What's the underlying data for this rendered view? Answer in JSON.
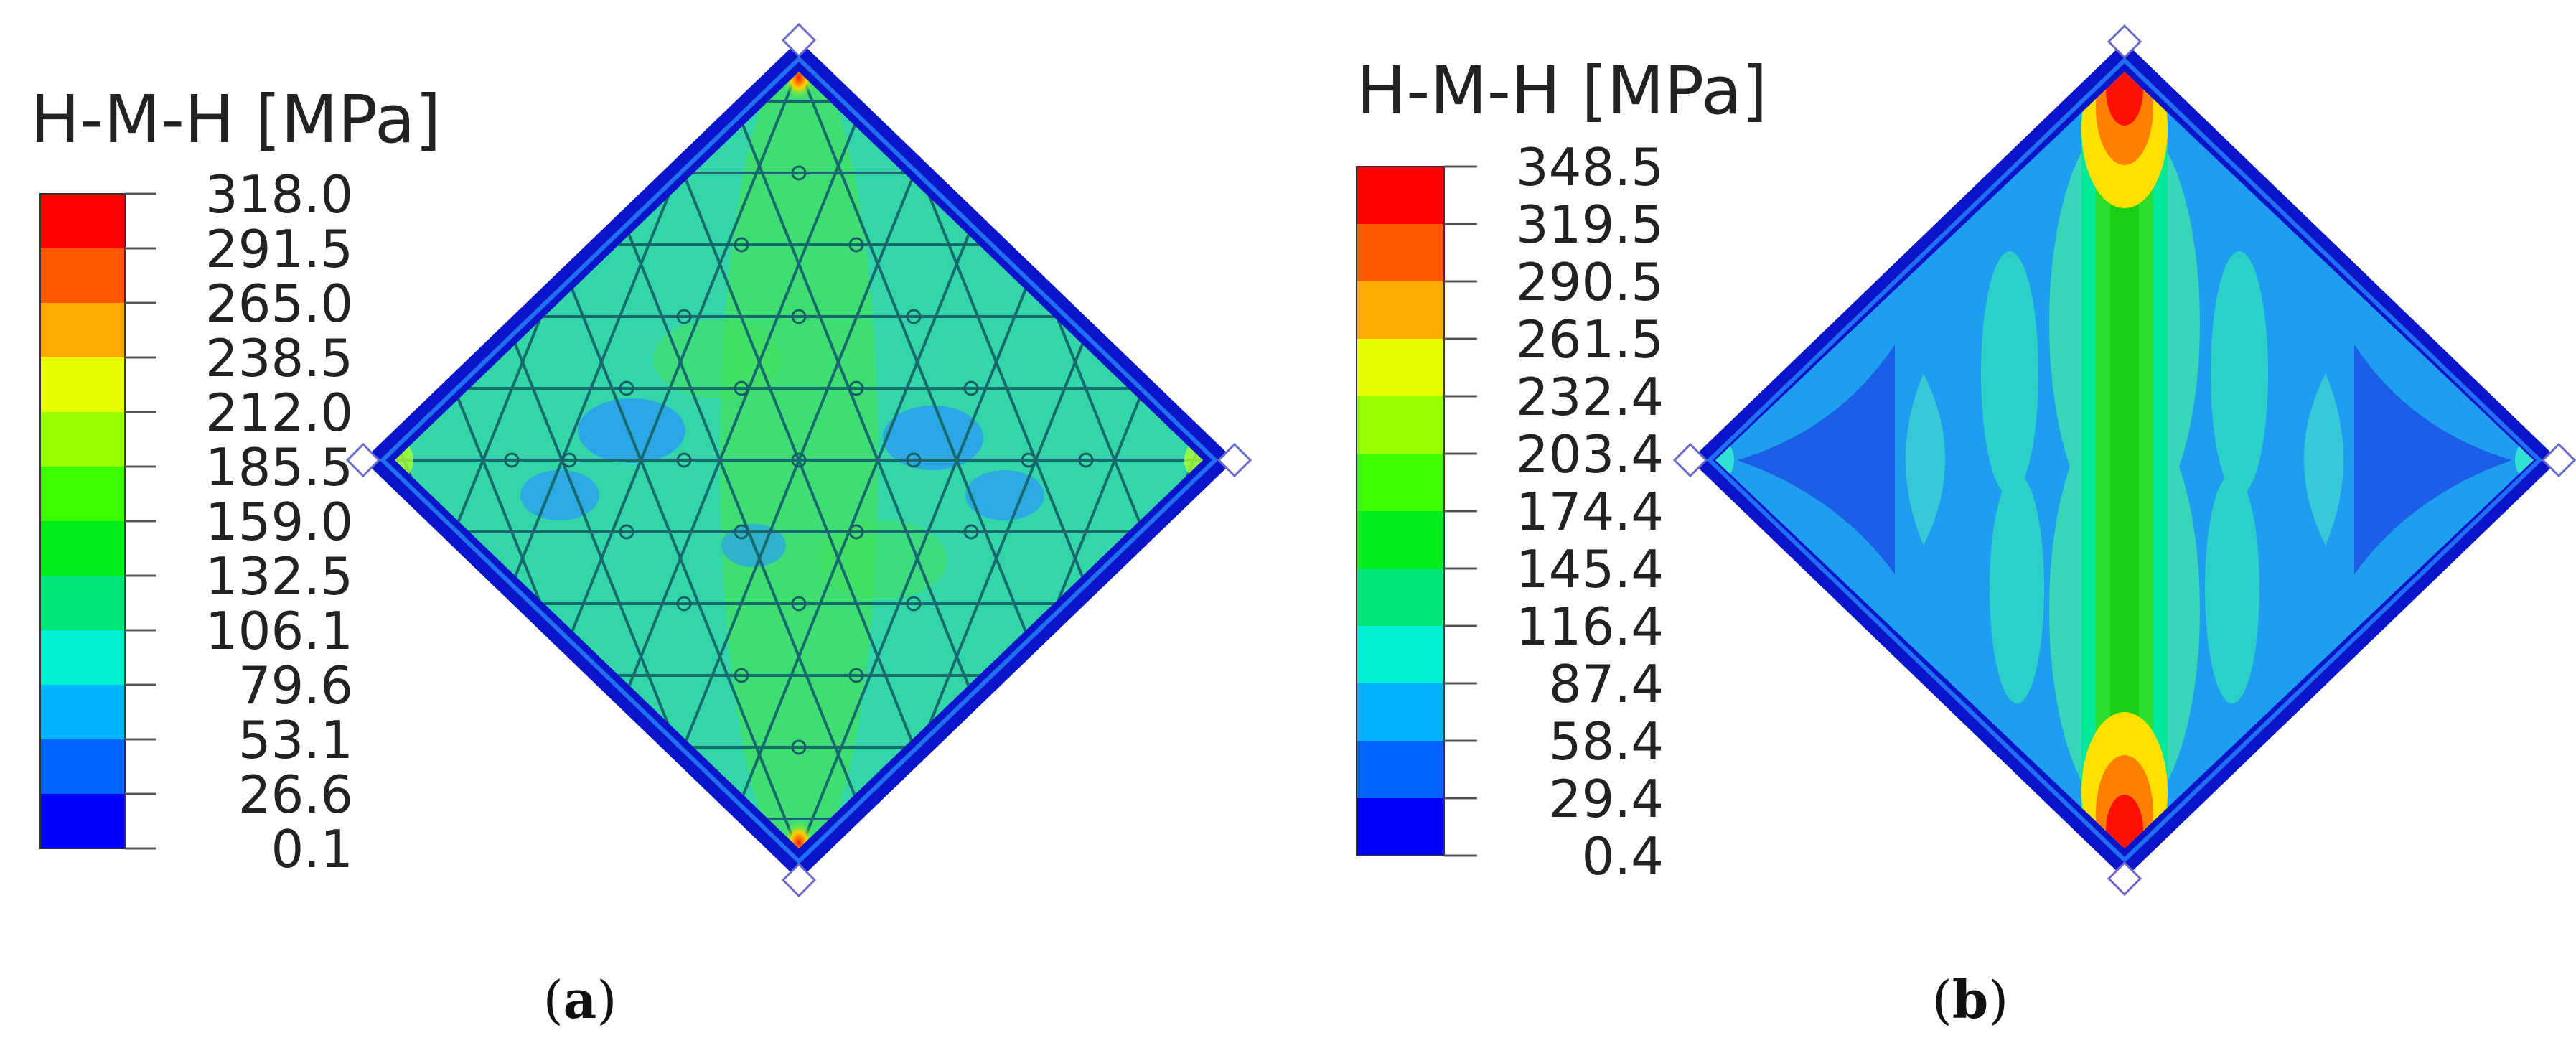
{
  "panel_a": {
    "legend_title": "H-M-H [MPa]",
    "ticks": [
      "318.0",
      "291.5",
      "265.0",
      "238.5",
      "212.0",
      "185.5",
      "159.0",
      "132.5",
      "106.1",
      "79.6",
      "53.1",
      "26.6",
      "0.1"
    ],
    "caption_open": "(",
    "caption_letter": "a",
    "caption_close": ")"
  },
  "panel_b": {
    "legend_title": "H-M-H [MPa]",
    "ticks": [
      "348.5",
      "319.5",
      "290.5",
      "261.5",
      "232.4",
      "203.4",
      "174.4",
      "145.4",
      "116.4",
      "87.4",
      "58.4",
      "29.4",
      "0.4"
    ],
    "caption_open": "(",
    "caption_letter": "b",
    "caption_close": ")"
  },
  "colors": {
    "scale": [
      "#ff0000",
      "#ff5a00",
      "#ffaa00",
      "#e8ff00",
      "#96ff00",
      "#3cff00",
      "#00ee1a",
      "#00e67a",
      "#00f0d2",
      "#00b4ff",
      "#0064ff",
      "#0000ff"
    ],
    "frame": "#0a14c8",
    "panel_a_fill": "#33d6a8",
    "panel_b_fill": "#1f9ef0",
    "support_marker": "#ffffff"
  }
}
